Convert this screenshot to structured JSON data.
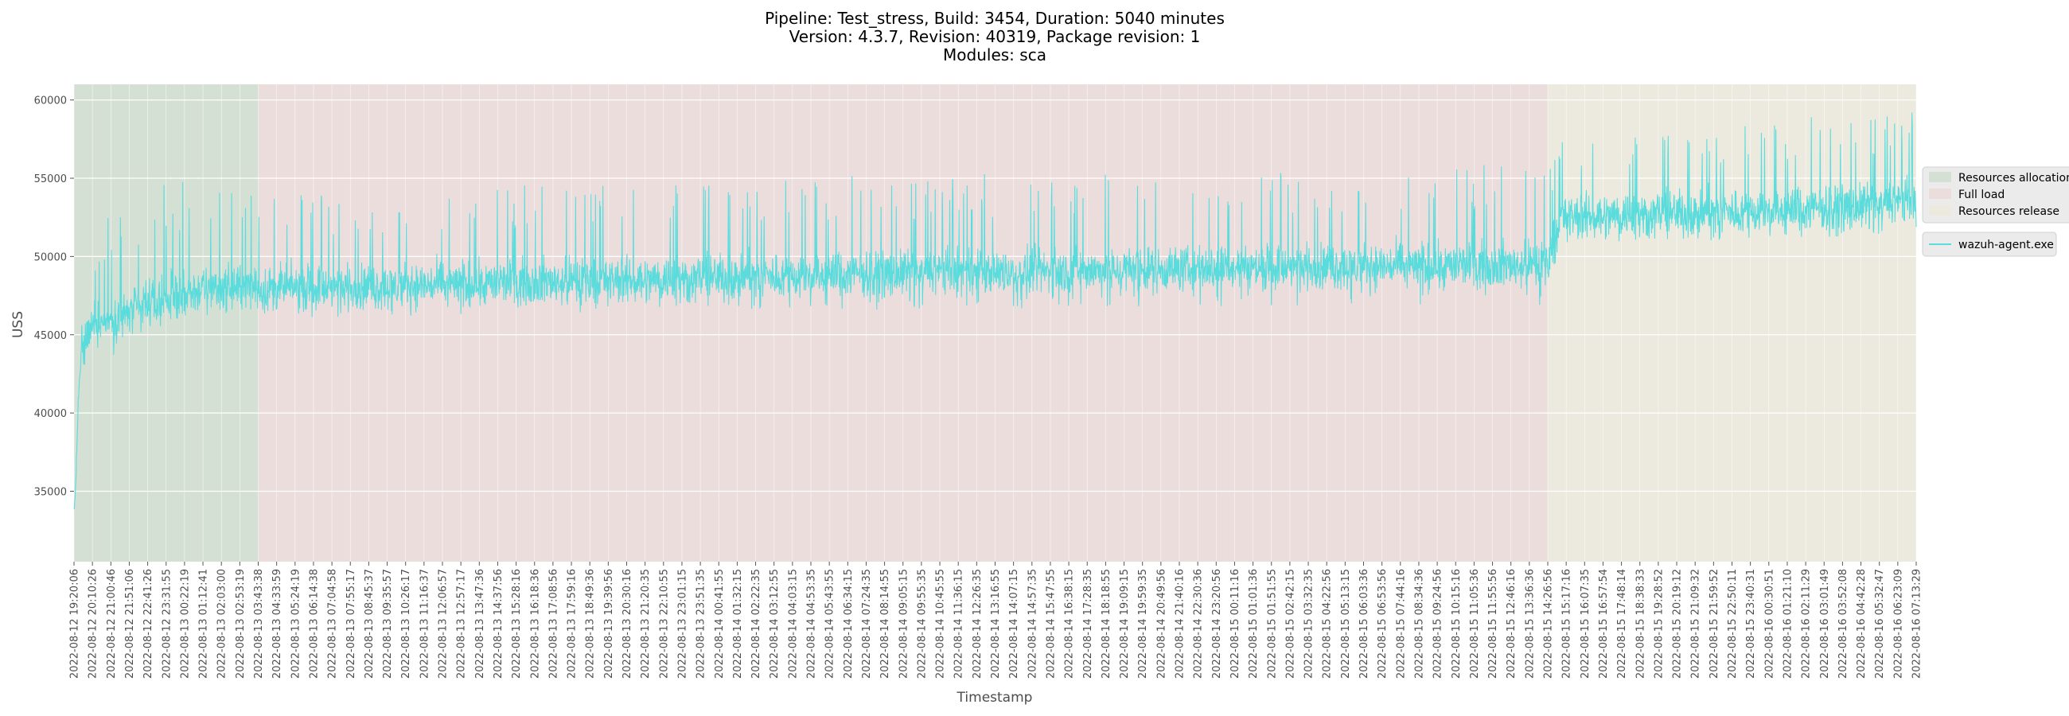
{
  "chart_data": {
    "type": "line",
    "title_lines": [
      "Pipeline: Test_stress, Build: 3454, Duration: 5040 minutes",
      "Version: 4.3.7, Revision: 40319, Package revision: 1",
      "Modules: sca"
    ],
    "xlabel": "Timestamp",
    "ylabel": "USS",
    "ylim": [
      30500,
      61000
    ],
    "y_ticks": [
      35000,
      40000,
      45000,
      50000,
      55000,
      60000
    ],
    "x_range": [
      "2022-08-12 19:20:06",
      "2022-08-16 07:13:29"
    ],
    "x_tick_labels": [
      "2022-08-12 19:20:06",
      "2022-08-12 20:10:26",
      "2022-08-12 21:00:46",
      "2022-08-12 21:51:06",
      "2022-08-12 22:41:26",
      "2022-08-12 23:31:55",
      "2022-08-13 00:22:19",
      "2022-08-13 01:12:41",
      "2022-08-13 02:03:00",
      "2022-08-13 02:53:19",
      "2022-08-13 03:43:38",
      "2022-08-13 04:33:59",
      "2022-08-13 05:24:19",
      "2022-08-13 06:14:38",
      "2022-08-13 07:04:58",
      "2022-08-13 07:55:17",
      "2022-08-13 08:45:37",
      "2022-08-13 09:35:57",
      "2022-08-13 10:26:17",
      "2022-08-13 11:16:37",
      "2022-08-13 12:06:57",
      "2022-08-13 12:57:17",
      "2022-08-13 13:47:36",
      "2022-08-13 14:37:56",
      "2022-08-13 15:28:16",
      "2022-08-13 16:18:36",
      "2022-08-13 17:08:56",
      "2022-08-13 17:59:16",
      "2022-08-13 18:49:36",
      "2022-08-13 19:39:56",
      "2022-08-13 20:30:16",
      "2022-08-13 21:20:35",
      "2022-08-13 22:10:55",
      "2022-08-13 23:01:15",
      "2022-08-13 23:51:35",
      "2022-08-14 00:41:55",
      "2022-08-14 01:32:15",
      "2022-08-14 02:22:35",
      "2022-08-14 03:12:55",
      "2022-08-14 04:03:15",
      "2022-08-14 04:53:35",
      "2022-08-14 05:43:55",
      "2022-08-14 06:34:15",
      "2022-08-14 07:24:35",
      "2022-08-14 08:14:55",
      "2022-08-14 09:05:15",
      "2022-08-14 09:55:35",
      "2022-08-14 10:45:55",
      "2022-08-14 11:36:15",
      "2022-08-14 12:26:35",
      "2022-08-14 13:16:55",
      "2022-08-14 14:07:15",
      "2022-08-14 14:57:35",
      "2022-08-14 15:47:55",
      "2022-08-14 16:38:15",
      "2022-08-14 17:28:35",
      "2022-08-14 18:18:55",
      "2022-08-14 19:09:15",
      "2022-08-14 19:59:35",
      "2022-08-14 20:49:56",
      "2022-08-14 21:40:16",
      "2022-08-14 22:30:36",
      "2022-08-14 23:20:56",
      "2022-08-15 00:11:16",
      "2022-08-15 01:01:36",
      "2022-08-15 01:51:55",
      "2022-08-15 02:42:15",
      "2022-08-15 03:32:35",
      "2022-08-15 04:22:56",
      "2022-08-15 05:13:15",
      "2022-08-15 06:03:36",
      "2022-08-15 06:53:56",
      "2022-08-15 07:44:16",
      "2022-08-15 08:34:36",
      "2022-08-15 09:24:56",
      "2022-08-15 10:15:16",
      "2022-08-15 11:05:36",
      "2022-08-15 11:55:56",
      "2022-08-15 12:46:16",
      "2022-08-15 13:36:36",
      "2022-08-15 14:26:56",
      "2022-08-15 15:17:16",
      "2022-08-15 16:07:35",
      "2022-08-15 16:57:54",
      "2022-08-15 17:48:14",
      "2022-08-15 18:38:33",
      "2022-08-15 19:28:52",
      "2022-08-15 20:19:12",
      "2022-08-15 21:09:32",
      "2022-08-15 21:59:52",
      "2022-08-15 22:50:11",
      "2022-08-15 23:40:31",
      "2022-08-16 00:30:51",
      "2022-08-16 01:21:10",
      "2022-08-16 02:11:29",
      "2022-08-16 03:01:49",
      "2022-08-16 03:52:08",
      "2022-08-16 04:42:28",
      "2022-08-16 05:32:47",
      "2022-08-16 06:23:09",
      "2022-08-16 07:13:29"
    ],
    "phases": [
      {
        "label": "Resources allocation",
        "start": "2022-08-12 19:20:06",
        "end": "2022-08-13 03:43:38",
        "color": "#7fb27f"
      },
      {
        "label": "Full load",
        "start": "2022-08-13 03:43:38",
        "end": "2022-08-15 14:26:56",
        "color": "#f2a6a6"
      },
      {
        "label": "Resources release",
        "start": "2022-08-15 14:26:56",
        "end": "2022-08-16 07:13:29",
        "color": "#f0e8b0"
      }
    ],
    "series": [
      {
        "name": "wazuh-agent.exe",
        "color": "#5adcdc",
        "points": [
          [
            "2022-08-12 19:20:06",
            33500
          ],
          [
            "2022-08-12 19:25:00",
            35500
          ],
          [
            "2022-08-12 19:32:00",
            41000
          ],
          [
            "2022-08-12 19:40:00",
            44000
          ],
          [
            "2022-08-12 20:10:00",
            45500
          ],
          [
            "2022-08-12 21:00:00",
            46000
          ],
          [
            "2022-08-12 22:00:00",
            46500
          ],
          [
            "2022-08-12 23:00:00",
            47000
          ],
          [
            "2022-08-13 00:00:00",
            47500
          ],
          [
            "2022-08-13 01:30:00",
            48000
          ],
          [
            "2022-08-13 03:43:00",
            48000
          ],
          [
            "2022-08-13 08:00:00",
            48000
          ],
          [
            "2022-08-13 14:00:00",
            48300
          ],
          [
            "2022-08-13 20:00:00",
            48500
          ],
          [
            "2022-08-14 02:00:00",
            48700
          ],
          [
            "2022-08-14 08:00:00",
            48900
          ],
          [
            "2022-08-14 14:00:00",
            49000
          ],
          [
            "2022-08-14 20:00:00",
            49200
          ],
          [
            "2022-08-15 02:00:00",
            49300
          ],
          [
            "2022-08-15 08:00:00",
            49400
          ],
          [
            "2022-08-15 14:26:00",
            49500
          ],
          [
            "2022-08-15 15:00:00",
            52500
          ],
          [
            "2022-08-15 18:00:00",
            52700
          ],
          [
            "2022-08-15 22:00:00",
            52800
          ],
          [
            "2022-08-16 02:00:00",
            53000
          ],
          [
            "2022-08-16 05:00:00",
            53200
          ],
          [
            "2022-08-16 07:13:29",
            53500
          ]
        ],
        "band_low": [
          [
            "2022-08-12 19:40:00",
            43000
          ],
          [
            "2022-08-12 21:00:00",
            43500
          ],
          [
            "2022-08-12 22:00:00",
            45000
          ],
          [
            "2022-08-13 00:00:00",
            45800
          ],
          [
            "2022-08-13 03:43:00",
            46000
          ],
          [
            "2022-08-14 00:00:00",
            46500
          ],
          [
            "2022-08-15 00:00:00",
            46800
          ],
          [
            "2022-08-15 14:26:00",
            46800
          ],
          [
            "2022-08-15 15:00:00",
            50500
          ],
          [
            "2022-08-16 07:13:29",
            51500
          ]
        ],
        "band_high": [
          [
            "2022-08-12 19:40:00",
            50500
          ],
          [
            "2022-08-12 21:00:00",
            53000
          ],
          [
            "2022-08-13 00:00:00",
            55000
          ],
          [
            "2022-08-13 03:43:00",
            54000
          ],
          [
            "2022-08-14 00:00:00",
            55000
          ],
          [
            "2022-08-15 00:00:00",
            55500
          ],
          [
            "2022-08-15 14:26:00",
            56000
          ],
          [
            "2022-08-15 15:00:00",
            57500
          ],
          [
            "2022-08-16 07:13:29",
            59500
          ]
        ],
        "max": 59500,
        "min": 33500
      }
    ],
    "grid": true,
    "legend_position": "outside-right"
  }
}
